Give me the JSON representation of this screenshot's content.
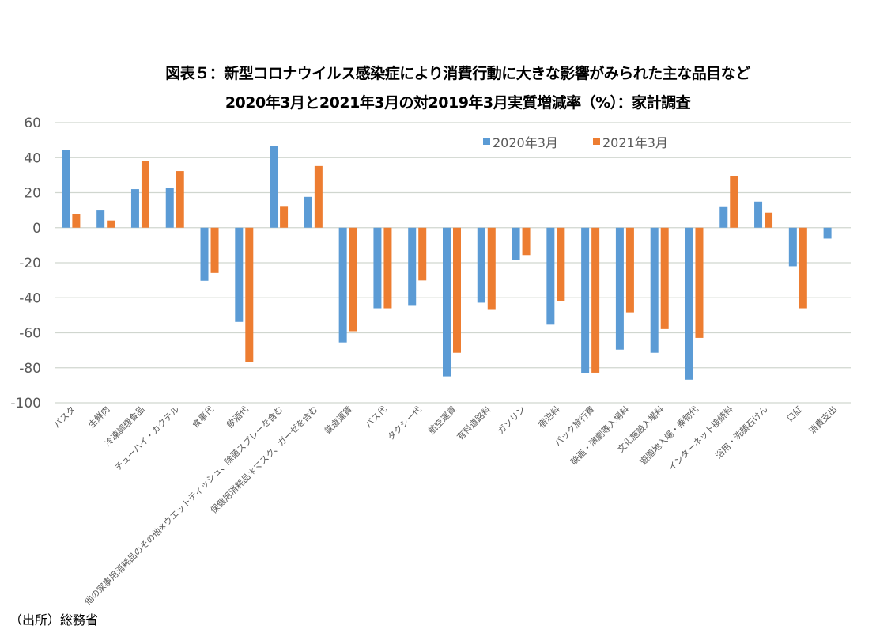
{
  "chart_data": {
    "type": "bar",
    "title": "図表５：新型コロナウイルス感染症により消費行動に大きな影響がみられた主な品目など",
    "subtitle": "2020年3月と2021年3月の対2019年3月実質増減率（%）：家計調査",
    "xlabel": "",
    "ylabel": "",
    "ylim": [
      -100,
      60
    ],
    "yticks": [
      60,
      40,
      20,
      0,
      -20,
      -40,
      -60,
      -80,
      -100
    ],
    "grid": true,
    "legend_position": "top-right",
    "categories": [
      "パスタ",
      "生鮮肉",
      "冷凍調理食品",
      "チューハイ・カクテル",
      "食事代",
      "飲酒代",
      "他の家事用消耗品のその他※ウエットティッシュ、除菌スプレーを含む",
      "保健用消耗品＊マスク、ガーゼを含む",
      "鉄道運賃",
      "バス代",
      "タクシー代",
      "航空運賃",
      "有料道路料",
      "ガソリン",
      "宿泊料",
      "パック旅行費",
      "映画・演劇等入場料",
      "文化施設入場料",
      "遊園地入場・乗物代",
      "インターネット接続料",
      "浴用・洗顔石けん",
      "口紅",
      "消費支出"
    ],
    "series": [
      {
        "name": "2020年3月",
        "color": "#5b9bd5",
        "values": [
          44.2,
          9.8,
          22.0,
          22.5,
          -30.3,
          -53.8,
          46.5,
          17.6,
          -65.5,
          -46.0,
          -44.6,
          -84.9,
          -42.8,
          -18.3,
          -55.4,
          -83.2,
          -69.6,
          -71.4,
          -86.8,
          12.2,
          14.9,
          -22.0,
          -6.2
        ]
      },
      {
        "name": "2021年3月",
        "color": "#ed7d31",
        "values": [
          7.6,
          4.1,
          37.9,
          32.4,
          -25.8,
          -76.8,
          12.4,
          35.2,
          -59.1,
          -46.0,
          -30.1,
          -71.4,
          -46.9,
          -15.6,
          -41.9,
          -82.8,
          -48.3,
          -57.9,
          -62.9,
          29.4,
          8.6,
          -46.0,
          null
        ]
      }
    ]
  },
  "source_note": "（出所）総務省"
}
